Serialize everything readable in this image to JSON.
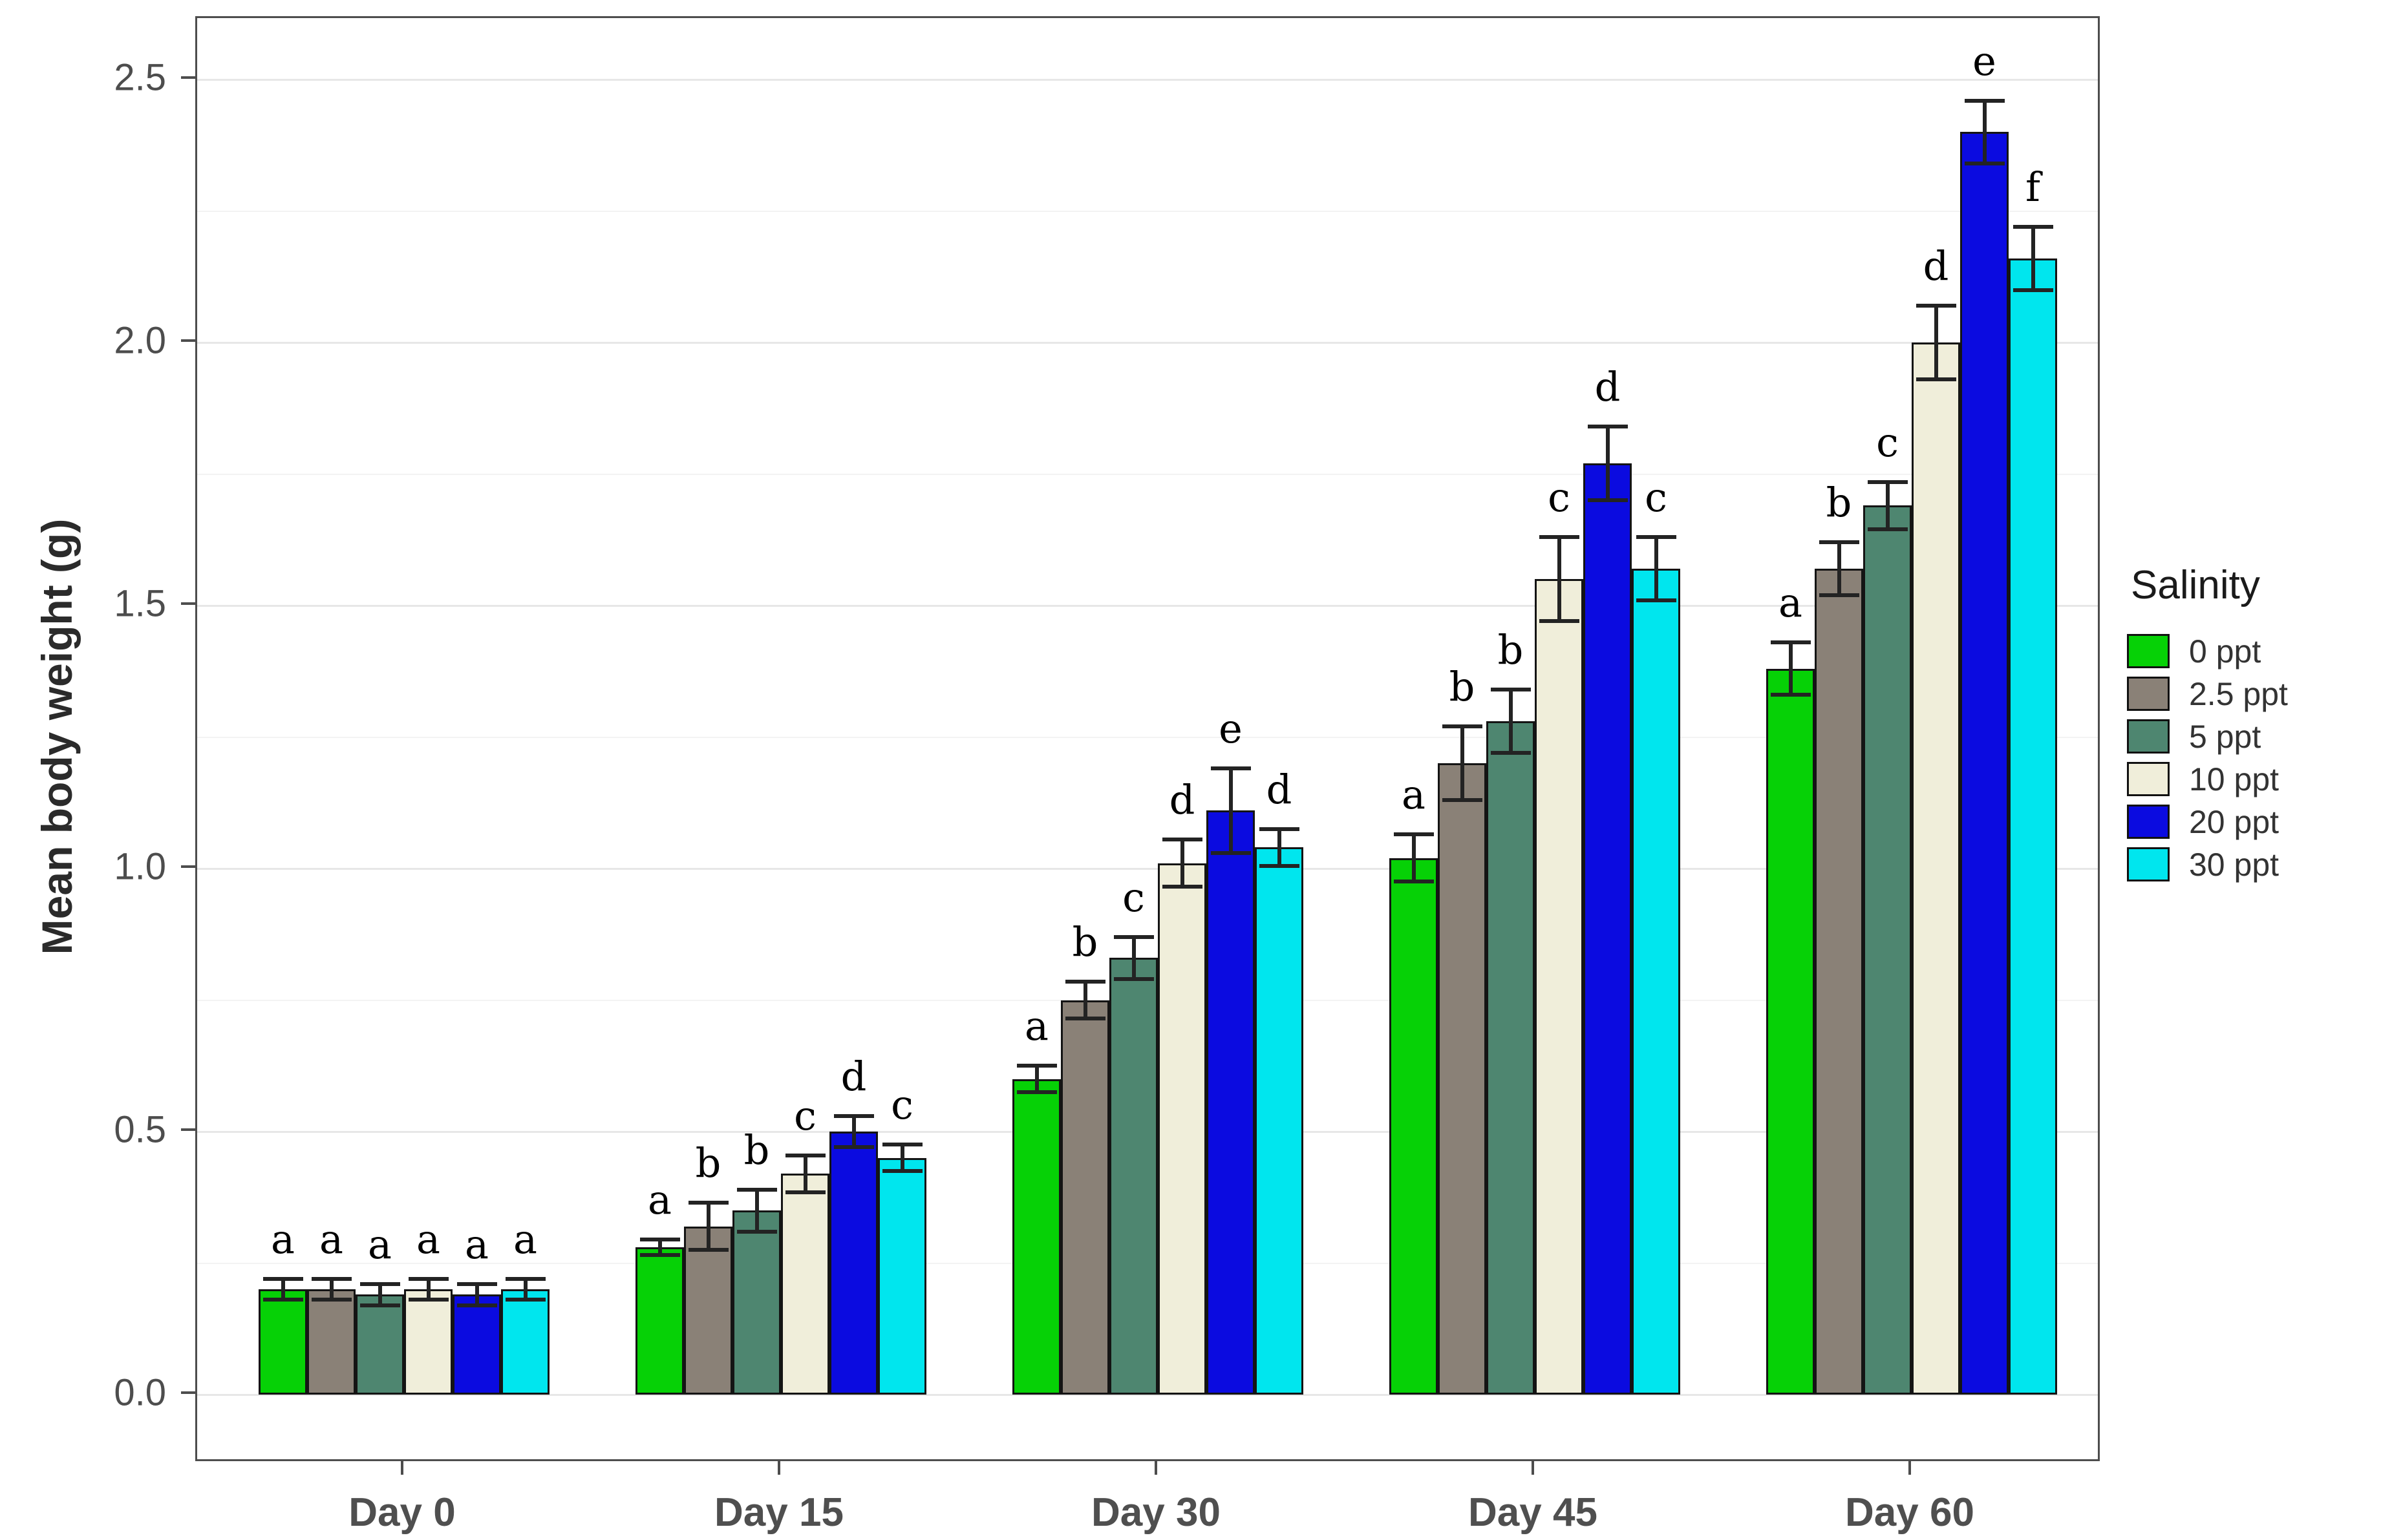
{
  "chart_data": {
    "type": "bar",
    "title": "",
    "xlabel": "",
    "ylabel": "Mean body weight (g)",
    "ylim": [
      0,
      2.62
    ],
    "yticks": [
      0.0,
      0.5,
      1.0,
      1.5,
      2.0,
      2.5
    ],
    "ytick_labels": [
      "0.0",
      "0.5",
      "1.0",
      "1.5",
      "2.0",
      "2.5"
    ],
    "minor_gridlines": [
      0.25,
      0.75,
      1.25,
      1.75,
      2.25
    ],
    "grid": "on",
    "categories": [
      "Day 0",
      "Day 15",
      "Day 30",
      "Day 45",
      "Day 60"
    ],
    "legend": {
      "title": "Salinity",
      "position": "right"
    },
    "series": [
      {
        "name": "0 ppt",
        "color": "#06d106",
        "values": [
          0.2,
          0.28,
          0.6,
          1.02,
          1.38
        ],
        "errors": [
          0.02,
          0.015,
          0.025,
          0.045,
          0.05
        ],
        "letters": [
          "a",
          "a",
          "a",
          "a",
          "a"
        ]
      },
      {
        "name": "2.5 ppt",
        "color": "#8a8177",
        "values": [
          0.2,
          0.32,
          0.75,
          1.2,
          1.57
        ],
        "errors": [
          0.02,
          0.045,
          0.035,
          0.07,
          0.05
        ],
        "letters": [
          "a",
          "b",
          "b",
          "b",
          "b"
        ]
      },
      {
        "name": "5 ppt",
        "color": "#4e8670",
        "values": [
          0.19,
          0.35,
          0.83,
          1.28,
          1.69
        ],
        "errors": [
          0.02,
          0.04,
          0.04,
          0.06,
          0.045
        ],
        "letters": [
          "a",
          "b",
          "c",
          "b",
          "c"
        ]
      },
      {
        "name": "10 ppt",
        "color": "#f0eeda",
        "values": [
          0.2,
          0.42,
          1.01,
          1.55,
          2.0
        ],
        "errors": [
          0.02,
          0.035,
          0.045,
          0.08,
          0.07
        ],
        "letters": [
          "a",
          "c",
          "d",
          "c",
          "d"
        ]
      },
      {
        "name": "20 ppt",
        "color": "#0b0be0",
        "values": [
          0.19,
          0.5,
          1.11,
          1.77,
          2.4
        ],
        "errors": [
          0.02,
          0.03,
          0.08,
          0.07,
          0.06
        ],
        "letters": [
          "a",
          "d",
          "e",
          "d",
          "e"
        ]
      },
      {
        "name": "30 ppt",
        "color": "#00e6ee",
        "values": [
          0.2,
          0.45,
          1.04,
          1.57,
          2.16
        ],
        "errors": [
          0.02,
          0.025,
          0.035,
          0.06,
          0.06
        ],
        "letters": [
          "a",
          "c",
          "d",
          "c",
          "f"
        ]
      }
    ]
  },
  "layout_colors": {
    "grid_major": "#e7e7e7",
    "grid_minor": "#f3f3f3",
    "panel_border": "#4d4d4d",
    "bar_outline": "#141414",
    "error_bar": "#232323"
  }
}
